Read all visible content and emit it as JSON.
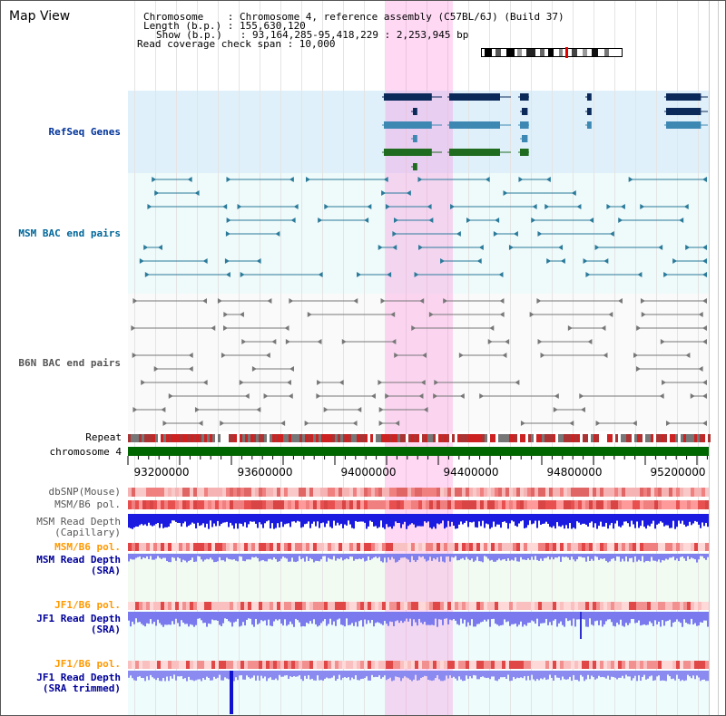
{
  "page": {
    "title": "Map View"
  },
  "header": {
    "lines": [
      "Chromosome    : Chromosome 4, reference assembly (C57BL/6J) (Build 37)",
      "Length (b.p.) : 155,630,120",
      "Show (b.p.)   : 93,164,285-95,418,229 : 2,253,945 bp",
      "Read coverage check span : 10,000"
    ]
  },
  "axis": {
    "start_bp": 93164285,
    "end_bp": 95418229,
    "ticks": [
      "93200000",
      "93600000",
      "94000000",
      "94400000",
      "94800000",
      "95200000"
    ]
  },
  "highlight": {
    "start_bp": 94160000,
    "end_bp": 94420000,
    "color": "#ff78d7"
  },
  "tracks": {
    "refseq": {
      "label": "RefSeq Genes",
      "color": "#003399"
    },
    "msm_bac": {
      "label": "MSM BAC end pairs",
      "color": "#006699"
    },
    "b6n_bac": {
      "label": "B6N BAC end pairs",
      "color": "#555555"
    },
    "repeat": {
      "label": "Repeat",
      "color": "#000000"
    },
    "chromosome": {
      "label": "chromosome 4",
      "color": "#000000",
      "bar_color": "#006600"
    },
    "dbsnp": {
      "label": "dbSNP(Mouse)",
      "color": "#555555"
    },
    "msm_b6_pol_1": {
      "label": "MSM/B6 pol.",
      "color": "#555555"
    },
    "msm_depth_cap": {
      "label": "MSM Read Depth\n(Capillary)",
      "color": "#555555"
    },
    "msm_b6_pol_2": {
      "label": "MSM/B6 pol.",
      "color": "#ff9900"
    },
    "msm_depth_sra": {
      "label": "MSM Read Depth\n(SRA)",
      "color": "#000099"
    },
    "jf1_b6_pol_1": {
      "label": "JF1/B6 pol.",
      "color": "#ff9900"
    },
    "jf1_depth_sra": {
      "label": "JF1 Read Depth\n(SRA)",
      "color": "#000099"
    },
    "jf1_b6_pol_2": {
      "label": "JF1/B6 pol.",
      "color": "#ff9900"
    },
    "jf1_depth_trim": {
      "label": "JF1 Read Depth\n(SRA trimmed)",
      "color": "#000099"
    }
  }
}
